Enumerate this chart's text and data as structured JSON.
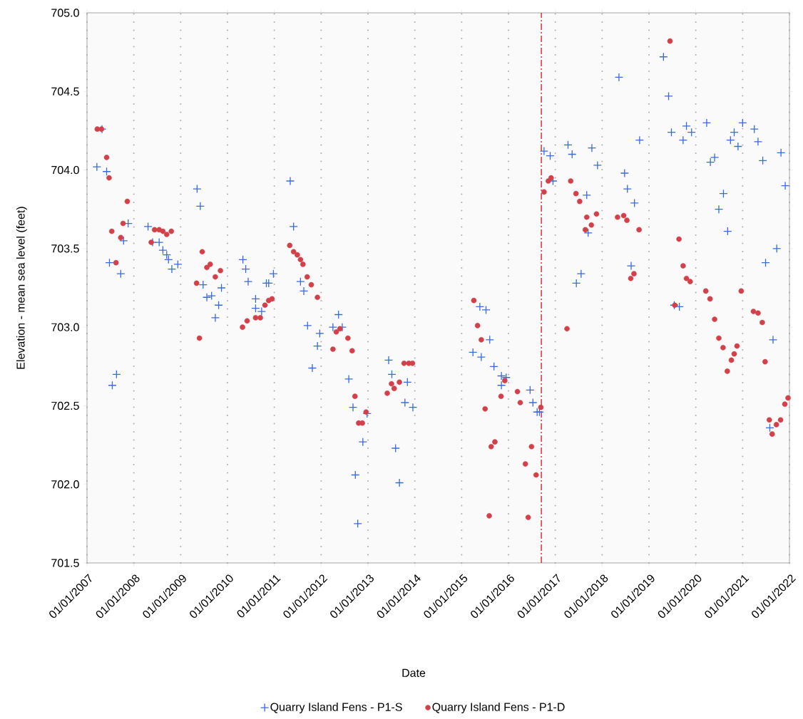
{
  "chart_data": {
    "type": "scatter",
    "xlabel": "Date",
    "ylabel": "Elevation - mean sea level (feet)",
    "xlim": [
      "2007-01-01",
      "2022-01-01"
    ],
    "ylim": [
      701.5,
      705.0
    ],
    "xticks": [
      {
        "value": "2007-01-01",
        "label": "01/01/2007"
      },
      {
        "value": "2008-01-01",
        "label": "01/01/2008"
      },
      {
        "value": "2009-01-01",
        "label": "01/01/2009"
      },
      {
        "value": "2010-01-01",
        "label": "01/01/2010"
      },
      {
        "value": "2011-01-01",
        "label": "01/01/2011"
      },
      {
        "value": "2012-01-01",
        "label": "01/01/2012"
      },
      {
        "value": "2013-01-01",
        "label": "01/01/2013"
      },
      {
        "value": "2014-01-01",
        "label": "01/01/2014"
      },
      {
        "value": "2015-01-01",
        "label": "01/01/2015"
      },
      {
        "value": "2016-01-01",
        "label": "01/01/2016"
      },
      {
        "value": "2017-01-01",
        "label": "01/01/2017"
      },
      {
        "value": "2018-01-01",
        "label": "01/01/2018"
      },
      {
        "value": "2019-01-01",
        "label": "01/01/2019"
      },
      {
        "value": "2020-01-01",
        "label": "01/01/2020"
      },
      {
        "value": "2021-01-01",
        "label": "01/01/2021"
      },
      {
        "value": "2022-01-01",
        "label": "01/01/2022"
      }
    ],
    "yticks": [
      {
        "value": 701.5,
        "label": "701.5"
      },
      {
        "value": 702.0,
        "label": "702.0"
      },
      {
        "value": 702.5,
        "label": "702.5"
      },
      {
        "value": 703.0,
        "label": "703.0"
      },
      {
        "value": 703.5,
        "label": "703.5"
      },
      {
        "value": 704.0,
        "label": "704.0"
      },
      {
        "value": 704.5,
        "label": "704.5"
      },
      {
        "value": 705.0,
        "label": "705.0"
      }
    ],
    "grid": "x",
    "legend": "bottom",
    "ref_lines": [
      {
        "axis": "x",
        "value": "2016-09-14",
        "color": "#e0303a",
        "line_style": "dashed"
      }
    ],
    "series": [
      {
        "name": "Quarry Island Fens - P1-S",
        "color": "#3a6bd6",
        "marker": "cross",
        "x": [
          "2007-03-19",
          "2007-04-28",
          "2007-06-03",
          "2007-06-25",
          "2007-07-17",
          "2007-08-19",
          "2007-09-21",
          "2007-10-13",
          "2007-11-18",
          "2008-04-21",
          "2008-05-27",
          "2008-07-17",
          "2008-08-15",
          "2008-09-14",
          "2008-09-28",
          "2008-10-24",
          "2008-12-10",
          "2009-05-09",
          "2009-06-03",
          "2009-06-25",
          "2009-07-24",
          "2009-08-30",
          "2009-09-28",
          "2009-10-24",
          "2009-11-15",
          "2010-05-01",
          "2010-05-23",
          "2010-06-11",
          "2010-08-08",
          "2010-08-08",
          "2010-09-24",
          "2010-10-31",
          "2010-11-18",
          "2010-12-25",
          "2011-05-05",
          "2011-05-31",
          "2011-07-24",
          "2011-08-19",
          "2011-09-17",
          "2011-10-24",
          "2011-12-03",
          "2011-12-21",
          "2012-04-02",
          "2012-05-16",
          "2012-06-14",
          "2012-08-04",
          "2012-09-06",
          "2012-09-24",
          "2012-10-13",
          "2012-11-22",
          "2012-12-25",
          "2013-06-11",
          "2013-07-06",
          "2013-08-04",
          "2013-09-03",
          "2013-10-16",
          "2013-11-04",
          "2013-12-17",
          "2015-03-30",
          "2015-05-23",
          "2015-06-03",
          "2015-07-10",
          "2015-08-08",
          "2015-09-10",
          "2015-11-07",
          "2015-11-07",
          "2015-12-14",
          "2016-06-18",
          "2016-07-10",
          "2016-08-12",
          "2016-08-30",
          "2016-10-05",
          "2016-11-22",
          "2016-12-14",
          "2017-04-10",
          "2017-05-12",
          "2017-06-14",
          "2017-07-21",
          "2017-09-03",
          "2017-09-14",
          "2017-10-13",
          "2017-11-26",
          "2018-05-12",
          "2018-06-25",
          "2018-07-17",
          "2018-08-15",
          "2018-09-10",
          "2018-10-20",
          "2019-04-24",
          "2019-06-03",
          "2019-06-25",
          "2019-07-17",
          "2019-08-26",
          "2019-09-24",
          "2019-10-20",
          "2019-11-29",
          "2020-03-26",
          "2020-04-24",
          "2020-05-27",
          "2020-06-29",
          "2020-08-04",
          "2020-09-06",
          "2020-09-28",
          "2020-10-27",
          "2020-11-26",
          "2021-01-01",
          "2021-04-02",
          "2021-05-01",
          "2021-06-07",
          "2021-06-29",
          "2021-08-01",
          "2021-08-26",
          "2021-09-24",
          "2021-10-27",
          "2021-11-29"
        ],
        "values": [
          704.02,
          704.26,
          703.99,
          703.41,
          702.63,
          702.7,
          703.34,
          703.55,
          703.66,
          703.64,
          703.54,
          703.54,
          703.49,
          703.46,
          703.43,
          703.37,
          703.4,
          703.88,
          703.77,
          703.27,
          703.19,
          703.2,
          703.06,
          703.14,
          703.25,
          703.43,
          703.37,
          703.29,
          703.18,
          703.12,
          703.1,
          703.28,
          703.28,
          703.34,
          703.93,
          703.64,
          703.29,
          703.23,
          703.01,
          702.74,
          702.88,
          702.96,
          703.0,
          703.08,
          703.0,
          702.67,
          702.49,
          702.06,
          701.75,
          702.27,
          702.45,
          702.79,
          702.7,
          702.23,
          702.01,
          702.52,
          702.65,
          702.49,
          702.84,
          703.13,
          702.81,
          703.11,
          702.92,
          702.75,
          702.69,
          702.63,
          702.68,
          702.6,
          702.52,
          702.46,
          702.46,
          704.12,
          704.09,
          703.93,
          704.16,
          704.1,
          703.28,
          703.34,
          703.84,
          703.6,
          704.14,
          704.03,
          704.59,
          703.98,
          703.88,
          703.39,
          703.79,
          704.19,
          704.72,
          704.47,
          704.24,
          703.14,
          703.13,
          704.19,
          704.28,
          704.24,
          704.3,
          704.05,
          704.08,
          703.75,
          703.85,
          703.61,
          704.19,
          704.24,
          704.15,
          704.3,
          704.26,
          704.18,
          704.06,
          703.41,
          702.36,
          702.92,
          703.5,
          704.11,
          703.9
        ]
      },
      {
        "name": "Quarry Island Fens - P1-D",
        "color": "#d2404a",
        "marker": "circle",
        "x": [
          "2007-03-22",
          "2007-04-24",
          "2007-06-03",
          "2007-06-22",
          "2007-07-13",
          "2007-08-15",
          "2007-09-21",
          "2007-10-09",
          "2007-11-11",
          "2008-05-16",
          "2008-06-11",
          "2008-07-17",
          "2008-08-15",
          "2008-09-14",
          "2008-10-20",
          "2009-05-05",
          "2009-05-27",
          "2009-06-18",
          "2009-07-24",
          "2009-08-19",
          "2009-09-28",
          "2009-11-07",
          "2010-04-28",
          "2010-06-03",
          "2010-08-08",
          "2010-09-14",
          "2010-10-20",
          "2010-11-18",
          "2010-12-14",
          "2011-05-01",
          "2011-05-31",
          "2011-06-29",
          "2011-07-24",
          "2011-08-12",
          "2011-09-14",
          "2011-10-16",
          "2011-12-03",
          "2012-04-02",
          "2012-04-28",
          "2012-05-27",
          "2012-07-28",
          "2012-08-30",
          "2012-09-21",
          "2012-10-20",
          "2012-11-18",
          "2012-12-17",
          "2013-05-31",
          "2013-07-03",
          "2013-07-24",
          "2013-09-03",
          "2013-10-09",
          "2013-11-15",
          "2013-12-14",
          "2015-04-06",
          "2015-05-05",
          "2015-06-03",
          "2015-07-03",
          "2015-08-04",
          "2015-08-19",
          "2015-09-17",
          "2015-11-04",
          "2015-12-03",
          "2016-03-11",
          "2016-04-02",
          "2016-05-12",
          "2016-06-03",
          "2016-06-29",
          "2016-08-04",
          "2016-09-10",
          "2016-10-05",
          "2016-11-07",
          "2016-11-29",
          "2017-04-02",
          "2017-05-01",
          "2017-06-11",
          "2017-07-10",
          "2017-08-23",
          "2017-09-03",
          "2017-10-09",
          "2017-11-18",
          "2018-05-01",
          "2018-06-18",
          "2018-07-13",
          "2018-08-12",
          "2018-09-06",
          "2018-10-16",
          "2019-06-14",
          "2019-07-21",
          "2019-08-23",
          "2019-09-24",
          "2019-10-20",
          "2019-11-18",
          "2020-03-19",
          "2020-04-21",
          "2020-05-27",
          "2020-06-29",
          "2020-08-01",
          "2020-09-03",
          "2020-10-05",
          "2020-10-27",
          "2020-11-18",
          "2020-12-21",
          "2021-03-26",
          "2021-05-01",
          "2021-06-03",
          "2021-06-25",
          "2021-07-28",
          "2021-08-19",
          "2021-09-21",
          "2021-10-24",
          "2021-11-26",
          "2021-12-21"
        ],
        "values": [
          704.26,
          704.26,
          704.08,
          703.95,
          703.61,
          703.41,
          703.57,
          703.66,
          703.8,
          703.54,
          703.62,
          703.62,
          703.61,
          703.59,
          703.61,
          703.28,
          702.93,
          703.48,
          703.38,
          703.4,
          703.32,
          703.36,
          703.0,
          703.04,
          703.06,
          703.06,
          703.14,
          703.17,
          703.18,
          703.52,
          703.48,
          703.46,
          703.43,
          703.4,
          703.32,
          703.27,
          703.19,
          702.86,
          702.97,
          702.99,
          702.93,
          702.85,
          702.56,
          702.39,
          702.39,
          702.46,
          702.58,
          702.64,
          702.61,
          702.65,
          702.77,
          702.77,
          702.77,
          703.17,
          703.01,
          702.92,
          702.48,
          701.8,
          702.24,
          702.27,
          702.56,
          702.66,
          702.59,
          702.52,
          702.13,
          701.79,
          702.24,
          702.06,
          702.49,
          703.86,
          703.93,
          703.95,
          702.99,
          703.93,
          703.85,
          703.8,
          703.62,
          703.7,
          703.65,
          703.72,
          703.7,
          703.71,
          703.68,
          703.31,
          703.34,
          703.62,
          704.82,
          703.14,
          703.56,
          703.39,
          703.31,
          703.29,
          703.23,
          703.18,
          703.05,
          702.93,
          702.87,
          702.72,
          702.79,
          702.83,
          702.88,
          703.23,
          703.1,
          703.09,
          703.03,
          702.78,
          702.41,
          702.32,
          702.38,
          702.41,
          702.51,
          702.55
        ]
      }
    ]
  }
}
